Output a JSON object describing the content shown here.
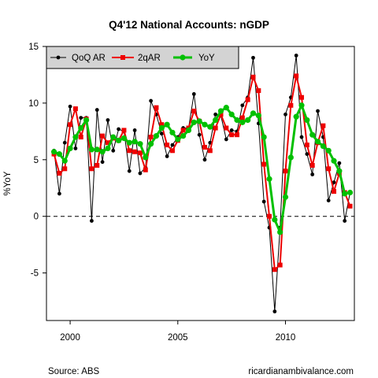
{
  "chart_data": {
    "type": "line",
    "title": "Q4'12 National Accounts: nGDP",
    "ylabel": "%YoY",
    "xlabel": "",
    "xlim": [
      1998.9,
      2013.2
    ],
    "ylim": [
      -9.2,
      15
    ],
    "x_ticks": [
      2000,
      2005,
      2010
    ],
    "y_ticks": [
      -5,
      0,
      5,
      10,
      15
    ],
    "reference_line": 0,
    "legend_position": "top-left",
    "source": "Source: ABS",
    "credit": "ricardianambivalance.com",
    "series": [
      {
        "name": "QoQ AR",
        "color": "#000000",
        "marker": "circle",
        "x": [
          1999.25,
          1999.5,
          1999.75,
          2000.0,
          2000.25,
          2000.5,
          2000.75,
          2001.0,
          2001.25,
          2001.5,
          2001.75,
          2002.0,
          2002.25,
          2002.5,
          2002.75,
          2003.0,
          2003.25,
          2003.5,
          2003.75,
          2004.0,
          2004.25,
          2004.5,
          2004.75,
          2005.0,
          2005.25,
          2005.5,
          2005.75,
          2006.0,
          2006.25,
          2006.5,
          2006.75,
          2007.0,
          2007.25,
          2007.5,
          2007.75,
          2008.0,
          2008.25,
          2008.5,
          2008.75,
          2009.0,
          2009.25,
          2009.5,
          2009.75,
          2010.0,
          2010.25,
          2010.5,
          2010.75,
          2011.0,
          2011.25,
          2011.5,
          2011.75,
          2012.0,
          2012.25,
          2012.5,
          2012.75,
          2013.0
        ],
        "values": [
          5.8,
          2.0,
          6.5,
          9.7,
          6.0,
          8.7,
          8.7,
          -0.4,
          9.4,
          4.8,
          8.5,
          5.8,
          7.7,
          7.5,
          4.0,
          7.6,
          3.8,
          4.3,
          10.2,
          9.0,
          7.3,
          5.3,
          6.3,
          7.0,
          7.8,
          7.8,
          10.8,
          7.2,
          5.0,
          6.5,
          9.0,
          8.9,
          6.8,
          7.6,
          7.5,
          9.8,
          10.5,
          14.0,
          8.2,
          1.3,
          -1.0,
          -8.4,
          -1.0,
          9.0,
          10.5,
          14.2,
          7.0,
          5.5,
          3.7,
          9.3,
          7.0,
          1.4,
          3.0,
          4.7,
          -0.4,
          2.1
        ]
      },
      {
        "name": "2qAR",
        "color": "#ee0000",
        "marker": "square",
        "x": [
          1999.25,
          1999.5,
          1999.75,
          2000.0,
          2000.25,
          2000.5,
          2000.75,
          2001.0,
          2001.25,
          2001.5,
          2001.75,
          2002.0,
          2002.25,
          2002.5,
          2002.75,
          2003.0,
          2003.25,
          2003.5,
          2003.75,
          2004.0,
          2004.25,
          2004.5,
          2004.75,
          2005.0,
          2005.25,
          2005.5,
          2005.75,
          2006.0,
          2006.25,
          2006.5,
          2006.75,
          2007.0,
          2007.25,
          2007.5,
          2007.75,
          2008.0,
          2008.25,
          2008.5,
          2008.75,
          2009.0,
          2009.25,
          2009.5,
          2009.75,
          2010.0,
          2010.25,
          2010.5,
          2010.75,
          2011.0,
          2011.25,
          2011.5,
          2011.75,
          2012.0,
          2012.25,
          2012.5,
          2012.75,
          2013.0
        ],
        "values": [
          5.5,
          3.8,
          4.2,
          8.1,
          9.5,
          7.0,
          8.6,
          4.2,
          4.5,
          7.1,
          6.5,
          6.9,
          6.7,
          7.6,
          5.8,
          5.7,
          5.6,
          4.1,
          7.0,
          9.6,
          8.1,
          6.3,
          5.8,
          6.7,
          7.6,
          7.8,
          9.3,
          8.4,
          6.1,
          5.8,
          7.8,
          9.0,
          7.8,
          7.2,
          7.2,
          8.7,
          10.3,
          12.3,
          11.1,
          4.6,
          0.0,
          -4.7,
          -4.3,
          4.0,
          9.8,
          12.4,
          10.5,
          6.3,
          4.5,
          6.5,
          8.0,
          4.2,
          2.2,
          3.8,
          2.1,
          0.9
        ]
      },
      {
        "name": "YoY",
        "color": "#00c000",
        "marker": "circle",
        "x": [
          1999.25,
          1999.5,
          1999.75,
          2000.0,
          2000.25,
          2000.5,
          2000.75,
          2001.0,
          2001.25,
          2001.5,
          2001.75,
          2002.0,
          2002.25,
          2002.5,
          2002.75,
          2003.0,
          2003.25,
          2003.5,
          2003.75,
          2004.0,
          2004.25,
          2004.5,
          2004.75,
          2005.0,
          2005.25,
          2005.5,
          2005.75,
          2006.0,
          2006.25,
          2006.5,
          2006.75,
          2007.0,
          2007.25,
          2007.5,
          2007.75,
          2008.0,
          2008.25,
          2008.5,
          2008.75,
          2009.0,
          2009.25,
          2009.5,
          2009.75,
          2010.0,
          2010.25,
          2010.5,
          2010.75,
          2011.0,
          2011.25,
          2011.5,
          2011.75,
          2012.0,
          2012.25,
          2012.5,
          2012.75,
          2013.0
        ],
        "values": [
          5.7,
          5.5,
          4.9,
          6.0,
          7.0,
          7.8,
          8.5,
          5.9,
          5.9,
          5.7,
          6.0,
          7.0,
          6.7,
          6.9,
          6.5,
          6.6,
          6.4,
          5.2,
          6.4,
          7.1,
          7.8,
          8.1,
          7.4,
          6.8,
          7.1,
          7.6,
          8.3,
          8.4,
          8.1,
          7.9,
          8.5,
          9.3,
          9.6,
          9.0,
          8.5,
          8.3,
          8.5,
          9.1,
          8.9,
          7.0,
          3.3,
          -0.3,
          -1.4,
          1.7,
          5.2,
          8.8,
          9.8,
          8.5,
          7.2,
          6.6,
          6.2,
          5.8,
          4.9,
          4.0,
          2.0,
          2.1
        ]
      }
    ]
  }
}
